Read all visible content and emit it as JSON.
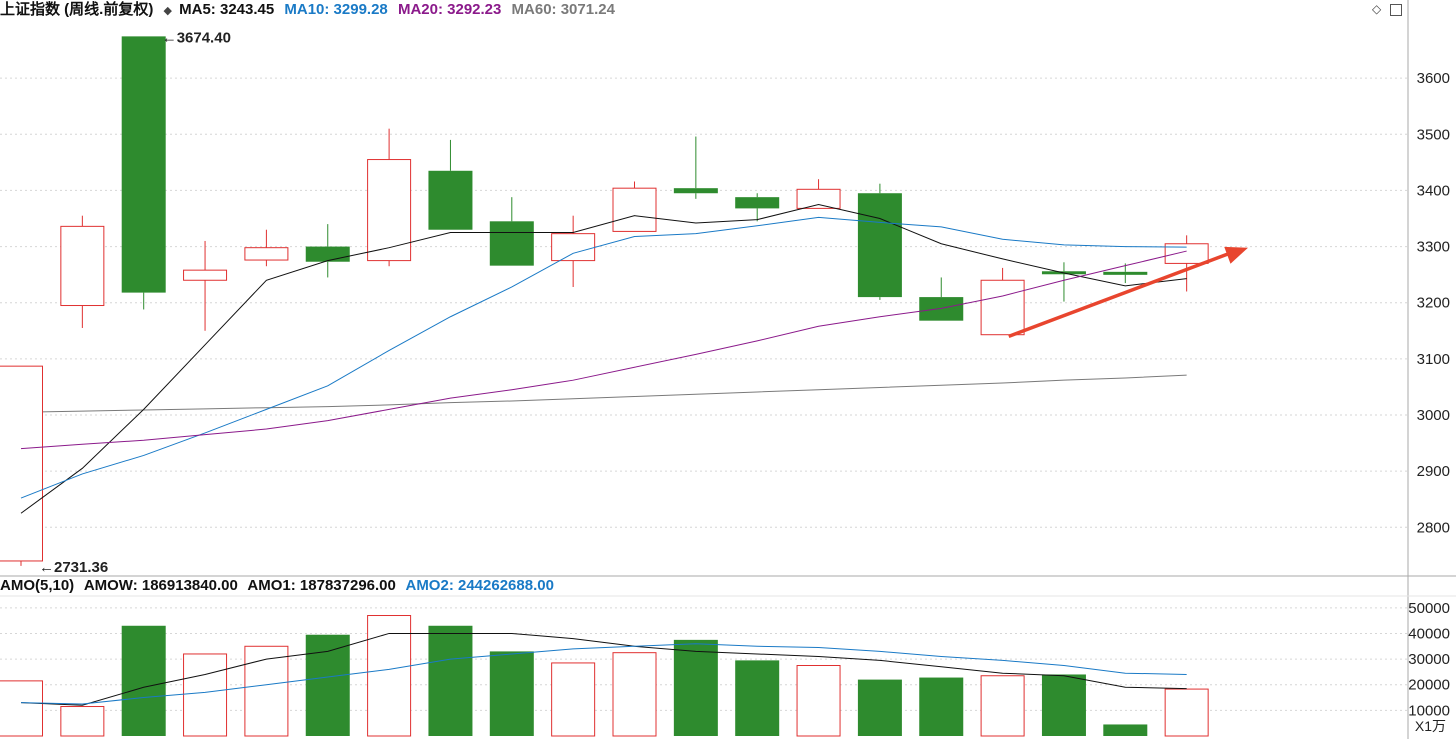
{
  "header": {
    "title": "上证指数 (周线.前复权)",
    "ma5_label": "MA5: 3243.45",
    "ma10_label": "MA10: 3299.28",
    "ma20_label": "MA20: 3292.23",
    "ma60_label": "MA60: 3071.24",
    "colors": {
      "ma5": "#111111",
      "ma10": "#1a7ac6",
      "ma20": "#8b1a8b",
      "ma60": "#7a7a7a"
    }
  },
  "sub_header": {
    "title": "AMO(5,10)",
    "amow_label": "AMOW: 186913840.00",
    "amo1_label": "AMO1: 187837296.00",
    "amo2_label": "AMO2: 244262688.00"
  },
  "controls": {
    "diamond_icon": "diamond-icon",
    "maximize_icon": "maximize-icon"
  },
  "volume_unit": "X1万",
  "chart_data": [
    {
      "type": "candlestick",
      "title": "上证指数 (周线.前复权)",
      "y_ticks": [
        2800,
        2900,
        3000,
        3100,
        3200,
        3300,
        3400,
        3500,
        3600
      ],
      "ylim": [
        2715,
        3700
      ],
      "colors": {
        "up": "#e03030",
        "down": "#2e8b2e"
      },
      "candles": [
        {
          "o": 2740,
          "c": 3087,
          "h": 3087,
          "l": 2731.36
        },
        {
          "o": 3195,
          "c": 3336,
          "h": 3355,
          "l": 3155
        },
        {
          "o": 3674.4,
          "c": 3218,
          "h": 3674.4,
          "l": 3188
        },
        {
          "o": 3240,
          "c": 3258,
          "h": 3310,
          "l": 3150
        },
        {
          "o": 3276,
          "c": 3298,
          "h": 3330,
          "l": 3265
        },
        {
          "o": 3300,
          "c": 3273,
          "h": 3340,
          "l": 3245
        },
        {
          "o": 3275,
          "c": 3455,
          "h": 3510,
          "l": 3265
        },
        {
          "o": 3435,
          "c": 3330,
          "h": 3490,
          "l": 3330
        },
        {
          "o": 3345,
          "c": 3266,
          "h": 3388,
          "l": 3266
        },
        {
          "o": 3275,
          "c": 3323,
          "h": 3355,
          "l": 3228
        },
        {
          "o": 3327,
          "c": 3404,
          "h": 3416,
          "l": 3327
        },
        {
          "o": 3404,
          "c": 3395,
          "h": 3496,
          "l": 3385
        },
        {
          "o": 3388,
          "c": 3368,
          "h": 3395,
          "l": 3345
        },
        {
          "o": 3368,
          "c": 3402,
          "h": 3420,
          "l": 3368
        },
        {
          "o": 3395,
          "c": 3210,
          "h": 3412,
          "l": 3205
        },
        {
          "o": 3210,
          "c": 3168,
          "h": 3245,
          "l": 3168
        },
        {
          "o": 3143,
          "c": 3240,
          "h": 3262,
          "l": 3143
        },
        {
          "o": 3256,
          "c": 3253,
          "h": 3272,
          "l": 3202
        },
        {
          "o": 3255,
          "c": 3250,
          "h": 3270,
          "l": 3235
        },
        {
          "o": 3270,
          "c": 3305,
          "h": 3320,
          "l": 3220
        }
      ],
      "series": [
        {
          "name": "MA5",
          "values": [
            2825,
            2905,
            3010,
            3125,
            3240,
            3275,
            3298,
            3325,
            3325,
            3325,
            3355,
            3342,
            3348,
            3375,
            3350,
            3305,
            3278,
            3253,
            3230,
            3243
          ]
        },
        {
          "name": "MA10",
          "values": [
            2852,
            2895,
            2928,
            2968,
            3010,
            3052,
            3115,
            3175,
            3228,
            3288,
            3318,
            3323,
            3337,
            3352,
            3343,
            3335,
            3313,
            3303,
            3300,
            3299
          ]
        },
        {
          "name": "MA20",
          "values": [
            2940,
            2948,
            2955,
            2965,
            2975,
            2990,
            3010,
            3030,
            3045,
            3062,
            3085,
            3108,
            3132,
            3158,
            3175,
            3190,
            3212,
            3240,
            3266,
            3292
          ]
        },
        {
          "name": "MA60",
          "values": [
            3005,
            3007,
            3009,
            3011,
            3013,
            3015,
            3018,
            3022,
            3025,
            3029,
            3033,
            3037,
            3041,
            3045,
            3049,
            3053,
            3057,
            3062,
            3066,
            3071
          ]
        }
      ],
      "annotations": [
        {
          "text": "3674.40",
          "candle": 2,
          "value": 3674.4
        },
        {
          "text": "2731.36",
          "candle": 0,
          "value": 2731.36
        }
      ],
      "arrow": {
        "from": {
          "candle": 16.1,
          "value": 3140
        },
        "to": {
          "candle": 20.0,
          "value": 3298
        },
        "color": "#e8452e"
      }
    },
    {
      "type": "bar",
      "title": "AMO(5,10)",
      "y_ticks": [
        10000,
        20000,
        30000,
        40000,
        50000
      ],
      "ylim": [
        0,
        55000
      ],
      "values": [
        21500,
        11500,
        43000,
        32000,
        35000,
        39500,
        47000,
        43000,
        33000,
        28500,
        32500,
        37500,
        29500,
        27500,
        22000,
        22800,
        23500,
        24000,
        4500,
        18300
      ],
      "up": [
        true,
        true,
        false,
        true,
        true,
        false,
        true,
        false,
        false,
        true,
        true,
        false,
        false,
        true,
        false,
        false,
        true,
        false,
        false,
        true
      ],
      "series": [
        {
          "name": "AMO1",
          "values": [
            13000,
            12000,
            19000,
            24000,
            30000,
            33000,
            40000,
            40000,
            40000,
            38000,
            35000,
            33000,
            32000,
            31000,
            29500,
            27000,
            24500,
            23500,
            19000,
            18500
          ]
        },
        {
          "name": "AMO2",
          "values": [
            13000,
            12500,
            15000,
            17000,
            20000,
            23000,
            26000,
            30000,
            32000,
            34000,
            35000,
            36000,
            35000,
            34500,
            33000,
            31000,
            29500,
            27500,
            24500,
            24000
          ]
        }
      ]
    }
  ]
}
